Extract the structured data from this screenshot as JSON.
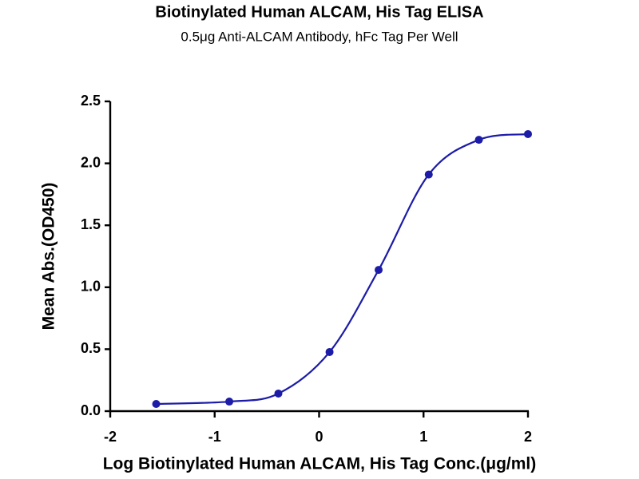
{
  "chart_data": {
    "type": "scatter",
    "title": "Biotinylated Human ALCAM, His Tag ELISA",
    "subtitle": "0.5μg Anti-ALCAM Antibody, hFc Tag Per Well",
    "x_label": "Log Biotinylated Human ALCAM, His Tag Conc.(μg/ml)",
    "y_label": "Mean Abs.(OD450)",
    "x": [
      -1.56,
      -0.86,
      -0.39,
      0.1,
      0.57,
      1.05,
      1.53,
      2.0
    ],
    "series": [
      {
        "color": "#1c1ca8",
        "values": [
          0.058,
          0.077,
          0.142,
          0.477,
          1.14,
          1.91,
          2.19,
          2.236
        ]
      }
    ],
    "xlim": [
      -2,
      2
    ],
    "xticks": [
      -2,
      -1,
      0,
      1,
      2
    ],
    "ylim": [
      0,
      2.5
    ],
    "yticks": [
      {
        "value": 0,
        "label": "0.0"
      },
      0.5,
      {
        "value": 1,
        "label": "1.0"
      },
      1.5,
      {
        "value": 2,
        "label": "2.0"
      },
      2.5
    ],
    "fit_curve": true
  }
}
